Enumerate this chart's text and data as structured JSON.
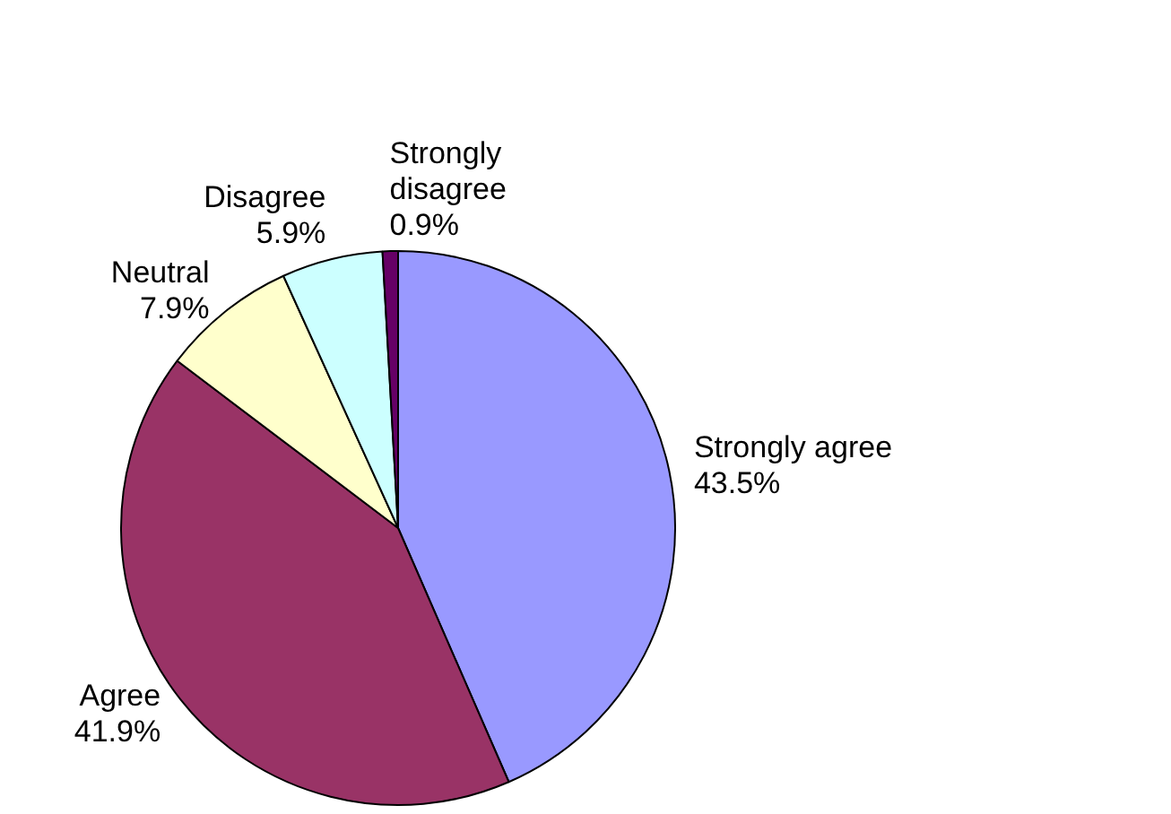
{
  "chart_data": {
    "type": "pie",
    "categories": [
      "Strongly agree",
      "Agree",
      "Neutral",
      "Disagree",
      "Strongly disagree"
    ],
    "values": [
      43.5,
      41.9,
      7.9,
      5.9,
      0.9
    ],
    "colors": [
      "#9999ff",
      "#993366",
      "#ffffcc",
      "#ccffff",
      "#660066"
    ],
    "value_labels": [
      "43.5%",
      "41.9%",
      "7.9%",
      "5.9%",
      "0.9%"
    ],
    "legend": false
  }
}
